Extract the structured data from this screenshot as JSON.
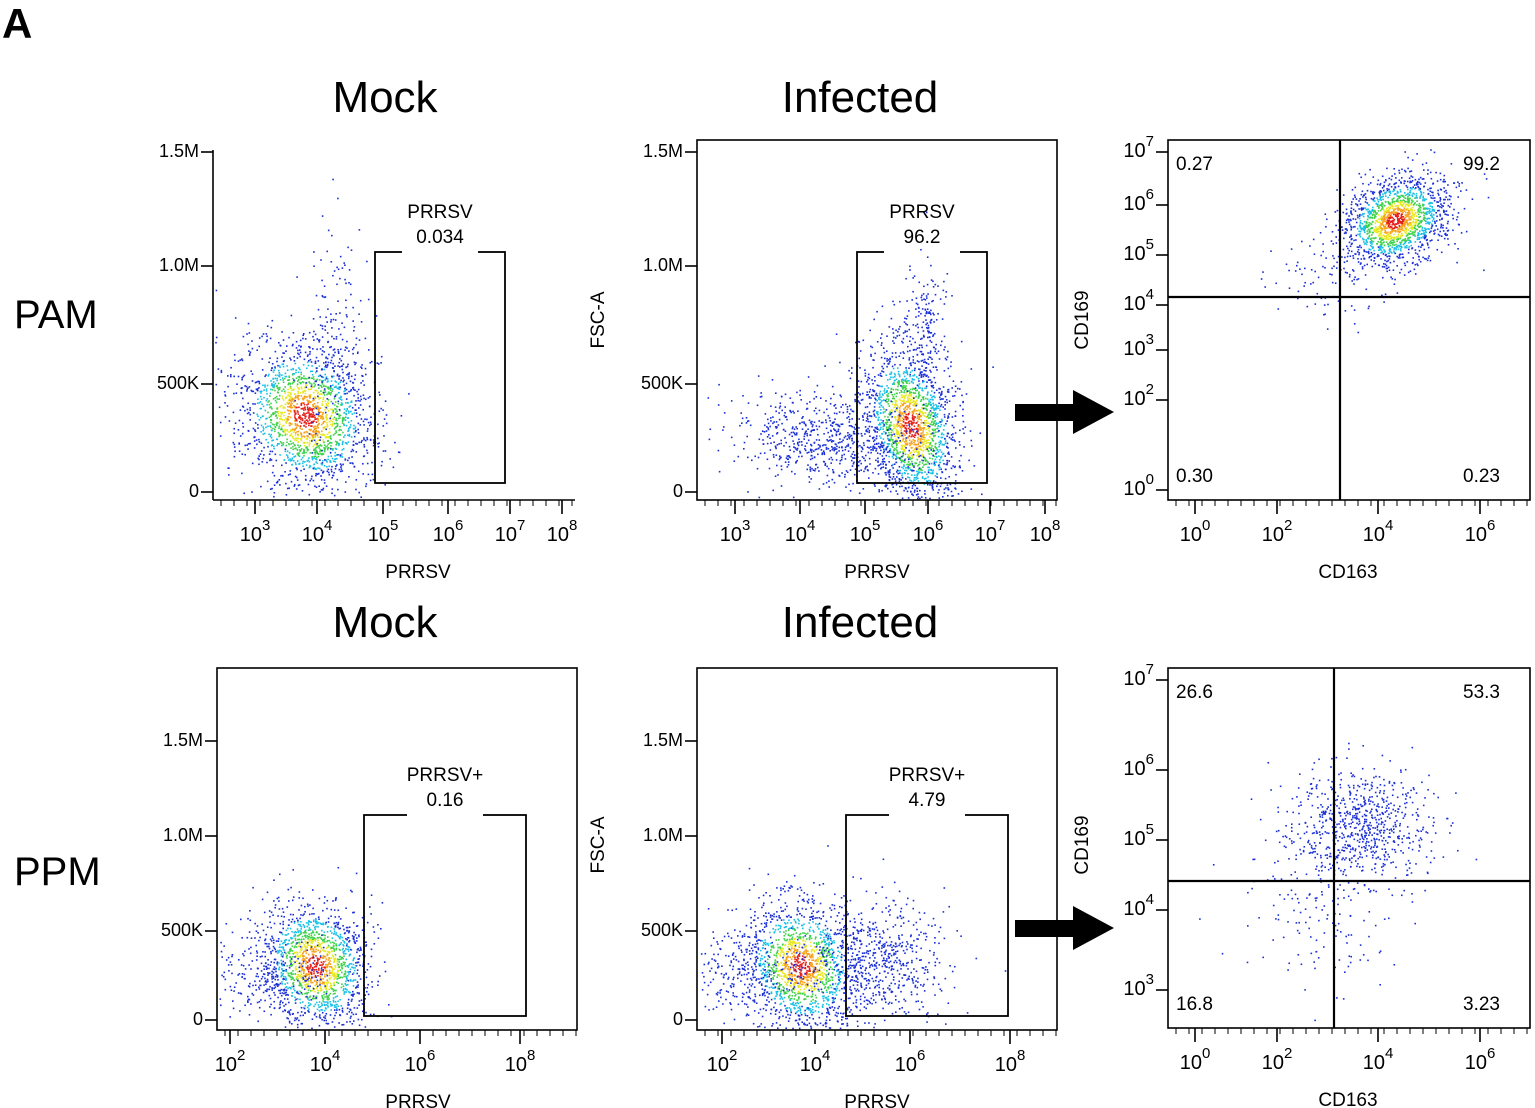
{
  "panel_label": "A",
  "rows": [
    {
      "label": "PAM",
      "plots": [
        {
          "title": "Mock",
          "xlabel": "PRRSV",
          "xticks": [
            {
              "base": "10",
              "exp": "3"
            },
            {
              "base": "10",
              "exp": "4"
            },
            {
              "base": "10",
              "exp": "5"
            },
            {
              "base": "10",
              "exp": "6"
            },
            {
              "base": "10",
              "exp": "7"
            },
            {
              "base": "10",
              "exp": "8"
            }
          ],
          "yticks": [
            "1.5M",
            "1.0M",
            "500K",
            "0"
          ],
          "gate": {
            "name": "PRRSV",
            "value": "0.034"
          }
        },
        {
          "title": "Infected",
          "xlabel": "PRRSV",
          "ylabel": "FSC-A",
          "xticks": [
            {
              "base": "10",
              "exp": "3"
            },
            {
              "base": "10",
              "exp": "4"
            },
            {
              "base": "10",
              "exp": "5"
            },
            {
              "base": "10",
              "exp": "6"
            },
            {
              "base": "10",
              "exp": "7"
            },
            {
              "base": "10",
              "exp": "8"
            }
          ],
          "yticks": [
            "1.5M",
            "1.0M",
            "500K",
            "0"
          ],
          "gate": {
            "name": "PRRSV",
            "value": "96.2"
          }
        },
        {
          "xlabel": "CD163",
          "ylabel": "CD169",
          "xticks": [
            {
              "base": "10",
              "exp": "0"
            },
            {
              "base": "10",
              "exp": "2"
            },
            {
              "base": "10",
              "exp": "4"
            },
            {
              "base": "10",
              "exp": "6"
            }
          ],
          "yticks": [
            {
              "base": "10",
              "exp": "7"
            },
            {
              "base": "10",
              "exp": "6"
            },
            {
              "base": "10",
              "exp": "5"
            },
            {
              "base": "10",
              "exp": "4"
            },
            {
              "base": "10",
              "exp": "3"
            },
            {
              "base": "10",
              "exp": "2"
            },
            {
              "base": "10",
              "exp": "0"
            }
          ],
          "quadrants": [
            "0.27",
            "99.2",
            "0.30",
            "0.23"
          ]
        }
      ]
    },
    {
      "label": "PPM",
      "plots": [
        {
          "title": "Mock",
          "xlabel": "PRRSV",
          "xticks": [
            {
              "base": "10",
              "exp": "2"
            },
            {
              "base": "10",
              "exp": "4"
            },
            {
              "base": "10",
              "exp": "6"
            },
            {
              "base": "10",
              "exp": "8"
            }
          ],
          "yticks": [
            "1.5M",
            "1.0M",
            "500K",
            "0"
          ],
          "gate": {
            "name": "PRRSV+",
            "value": "0.16"
          }
        },
        {
          "title": "Infected",
          "xlabel": "PRRSV",
          "ylabel": "FSC-A",
          "xticks": [
            {
              "base": "10",
              "exp": "2"
            },
            {
              "base": "10",
              "exp": "4"
            },
            {
              "base": "10",
              "exp": "6"
            },
            {
              "base": "10",
              "exp": "8"
            }
          ],
          "yticks": [
            "1.5M",
            "1.0M",
            "500K",
            "0"
          ],
          "gate": {
            "name": "PRRSV+",
            "value": "4.79"
          }
        },
        {
          "xlabel": "CD163",
          "ylabel": "CD169",
          "xticks": [
            {
              "base": "10",
              "exp": "0"
            },
            {
              "base": "10",
              "exp": "2"
            },
            {
              "base": "10",
              "exp": "4"
            },
            {
              "base": "10",
              "exp": "6"
            }
          ],
          "yticks": [
            {
              "base": "10",
              "exp": "7"
            },
            {
              "base": "10",
              "exp": "6"
            },
            {
              "base": "10",
              "exp": "5"
            },
            {
              "base": "10",
              "exp": "4"
            },
            {
              "base": "10",
              "exp": "3"
            }
          ],
          "quadrants": [
            "26.6",
            "53.3",
            "16.8",
            "3.23"
          ]
        }
      ]
    }
  ]
}
